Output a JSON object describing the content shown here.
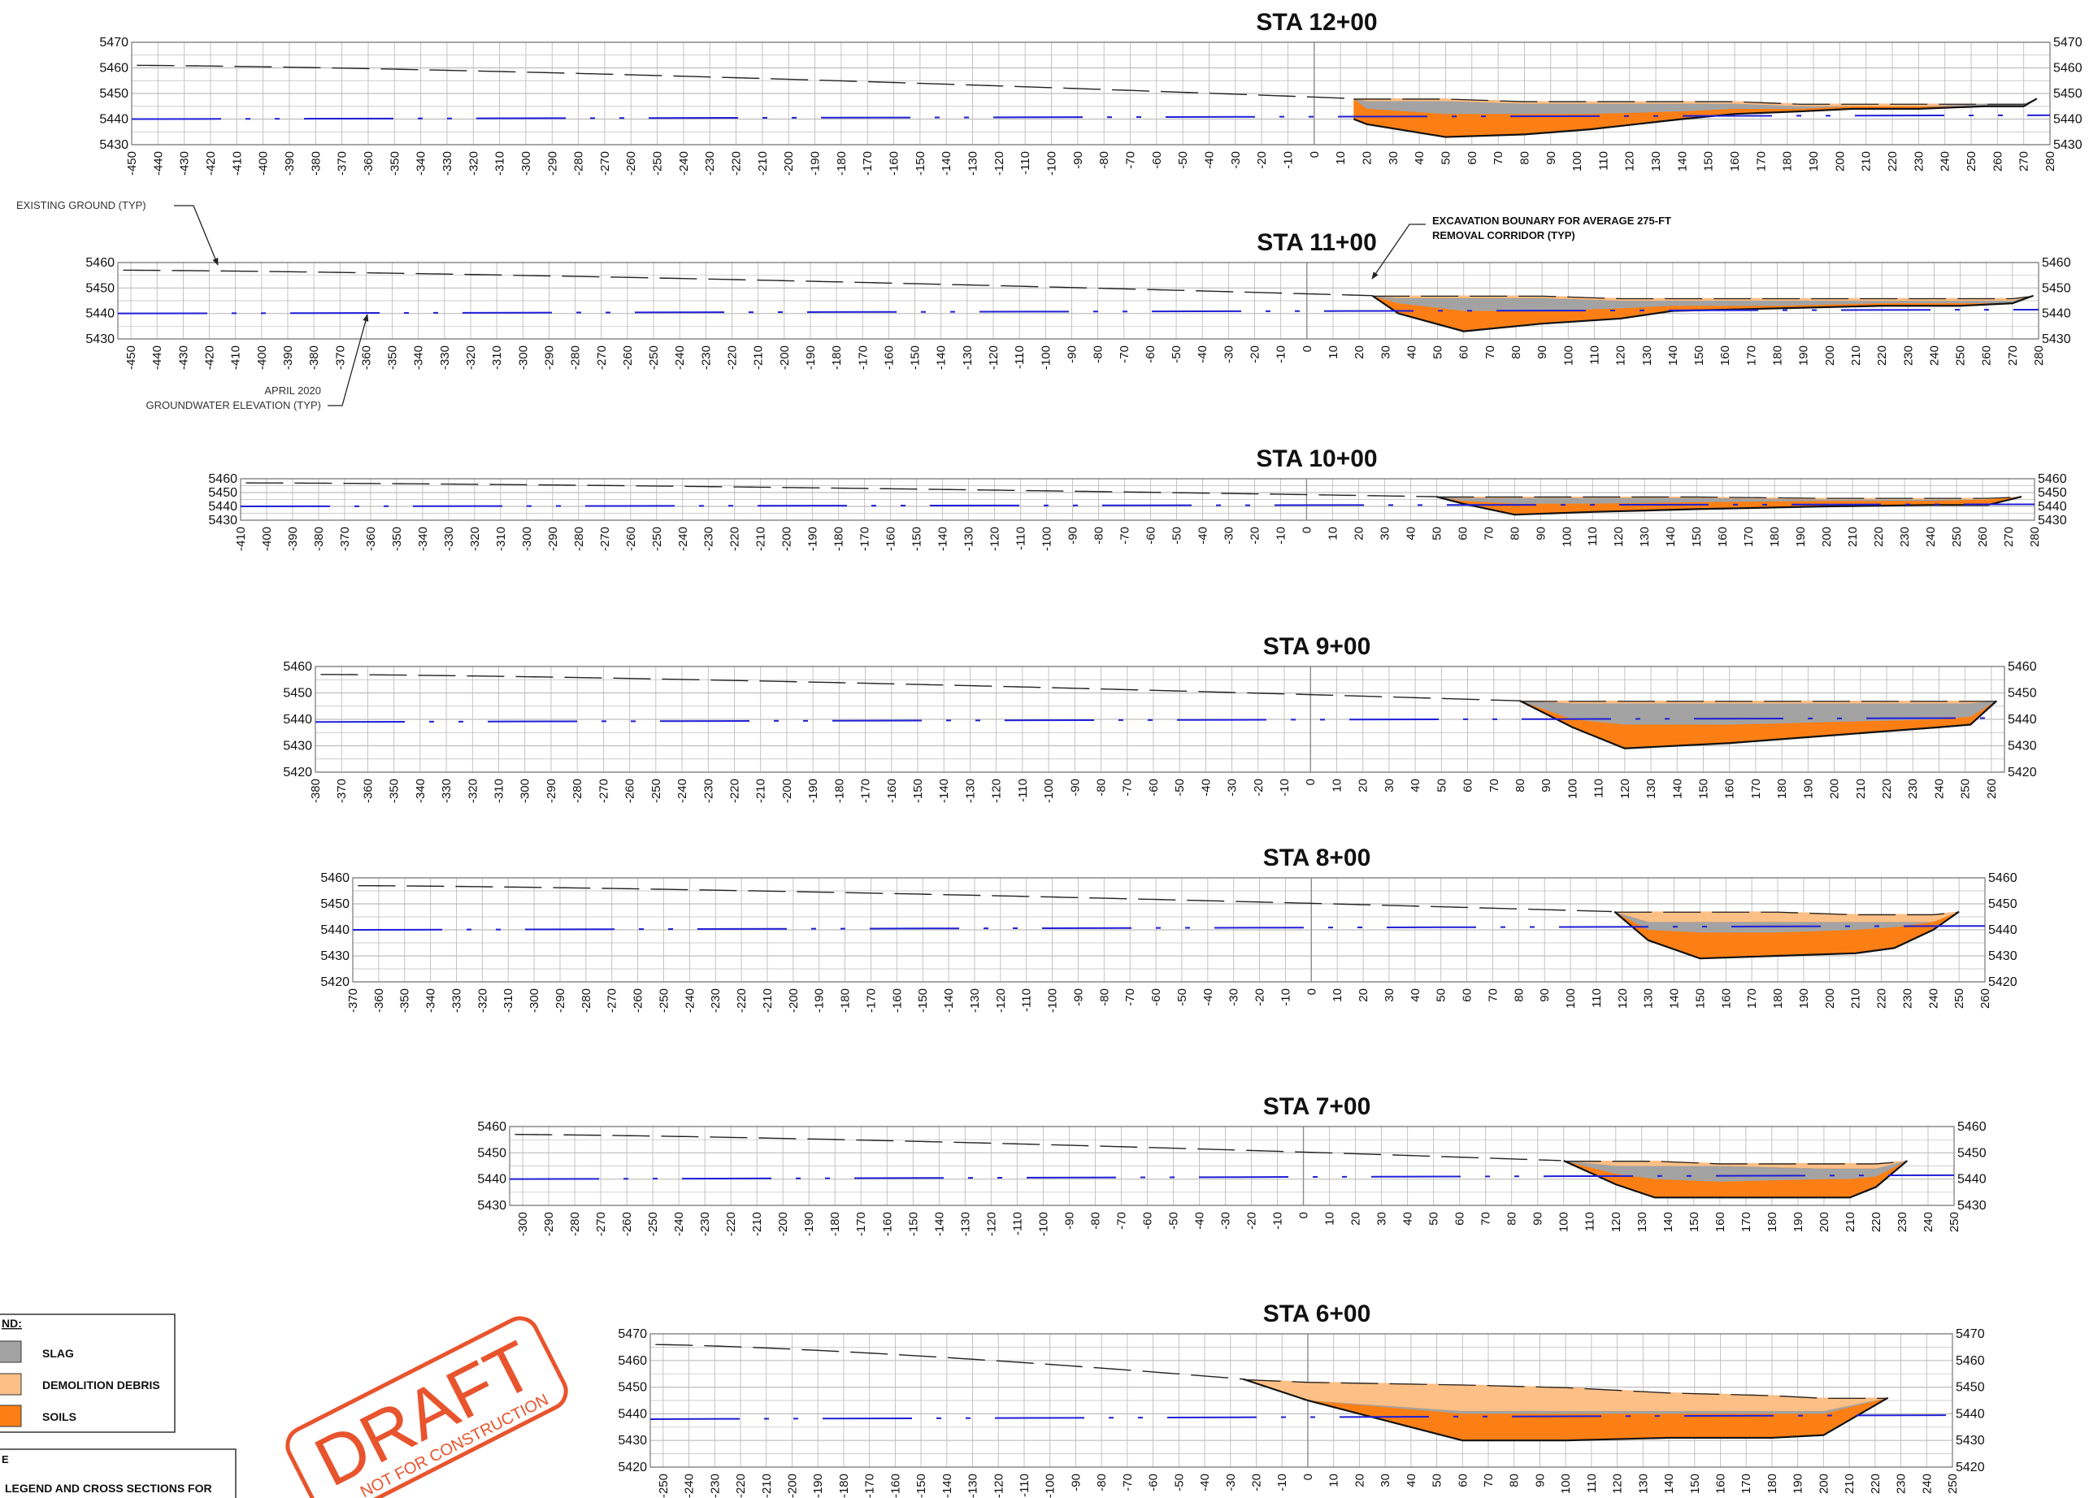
{
  "sections": [
    {
      "title": "STA 12+00",
      "xmin": -450,
      "xmax": 280,
      "ymin": 5430,
      "ymax": 5470
    },
    {
      "title": "STA 11+00",
      "xmin": -455,
      "xmax": 280,
      "ymin": 5430,
      "ymax": 5460
    },
    {
      "title": "STA 10+00",
      "xmin": -410,
      "xmax": 280,
      "ymin": 5430,
      "ymax": 5460
    },
    {
      "title": "STA 9+00",
      "xmin": -380,
      "xmax": 265,
      "ymin": 5420,
      "ymax": 5460
    },
    {
      "title": "STA 8+00",
      "xmin": -370,
      "xmax": 260,
      "ymin": 5420,
      "ymax": 5460
    },
    {
      "title": "STA 7+00",
      "xmin": -305,
      "xmax": 250,
      "ymin": 5430,
      "ymax": 5460
    },
    {
      "title": "STA 6+00",
      "xmin": -255,
      "xmax": 250,
      "ymin": 5420,
      "ymax": 5470
    }
  ],
  "callouts": {
    "existing_ground": "EXISTING GROUND (TYP)",
    "excavation_line1": "EXCAVATION BOUNARY FOR AVERAGE 275-FT",
    "excavation_line2": "REMOVAL CORRIDOR (TYP)",
    "groundwater_line1": "APRIL 2020",
    "groundwater_line2": "GROUNDWATER ELEVATION (TYP)"
  },
  "legend": {
    "title": "ND:",
    "items": [
      {
        "label": "SLAG",
        "color": "#a3a3a3"
      },
      {
        "label": "DEMOLITION DEBRIS",
        "color": "#fcbf85"
      },
      {
        "label": "SOILS",
        "color": "#fb7f15"
      }
    ]
  },
  "note": {
    "title": "E",
    "text": "LEGEND AND CROSS SECTIONS FOR"
  },
  "stamp": {
    "main": "DRAFT",
    "sub": "NOT FOR CONSTRUCTION"
  },
  "colors": {
    "slag": "#a3a3a3",
    "debris": "#fcbf85",
    "soils": "#fb7f15",
    "groundwater": "#1f1fd6",
    "grid": "#bdbdbd",
    "stamp": "#e8542d"
  }
}
